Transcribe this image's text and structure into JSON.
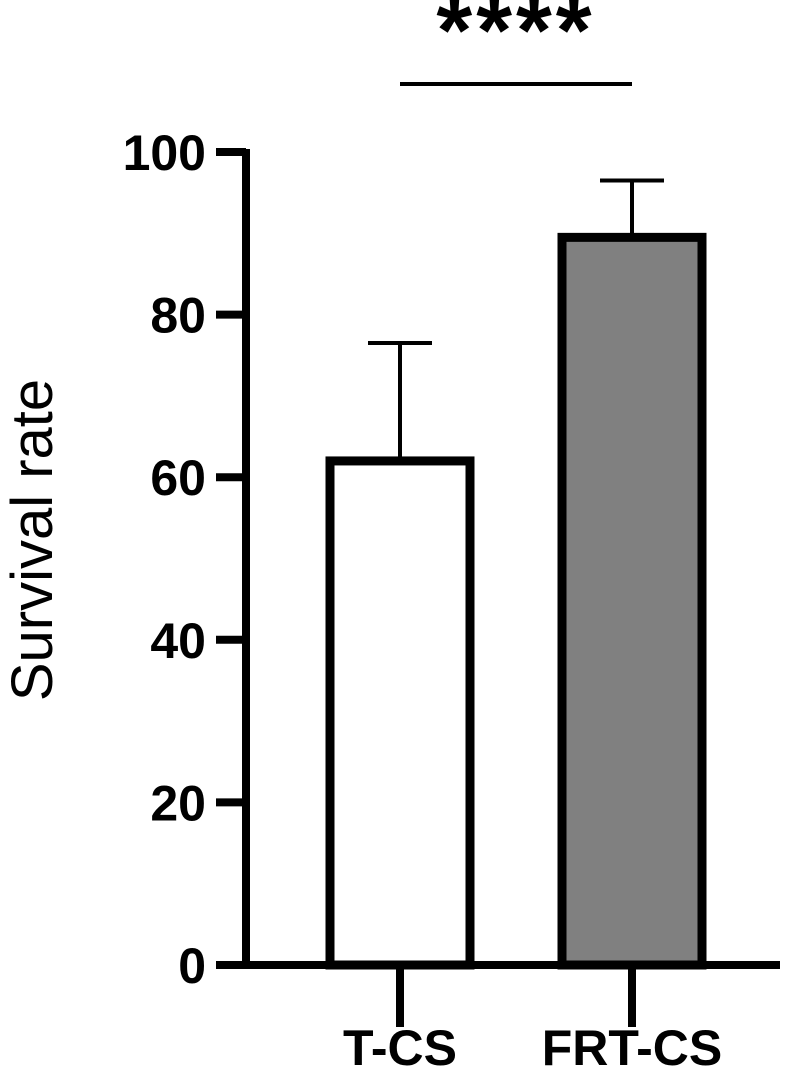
{
  "chart_data": {
    "type": "bar",
    "categories": [
      "T-CS",
      "FRT-CS"
    ],
    "values": [
      62,
      89.5
    ],
    "error_upper": [
      76.5,
      96.5
    ],
    "bar_fill": [
      "#ffffff",
      "#808080"
    ],
    "ylabel": "Survival rate",
    "xlabel": "",
    "ylim": [
      0,
      100
    ],
    "yticks": [
      "0",
      "20",
      "40",
      "60",
      "80",
      "100"
    ],
    "significance": {
      "label": "****",
      "between": [
        "T-CS",
        "FRT-CS"
      ]
    },
    "grid": false
  }
}
